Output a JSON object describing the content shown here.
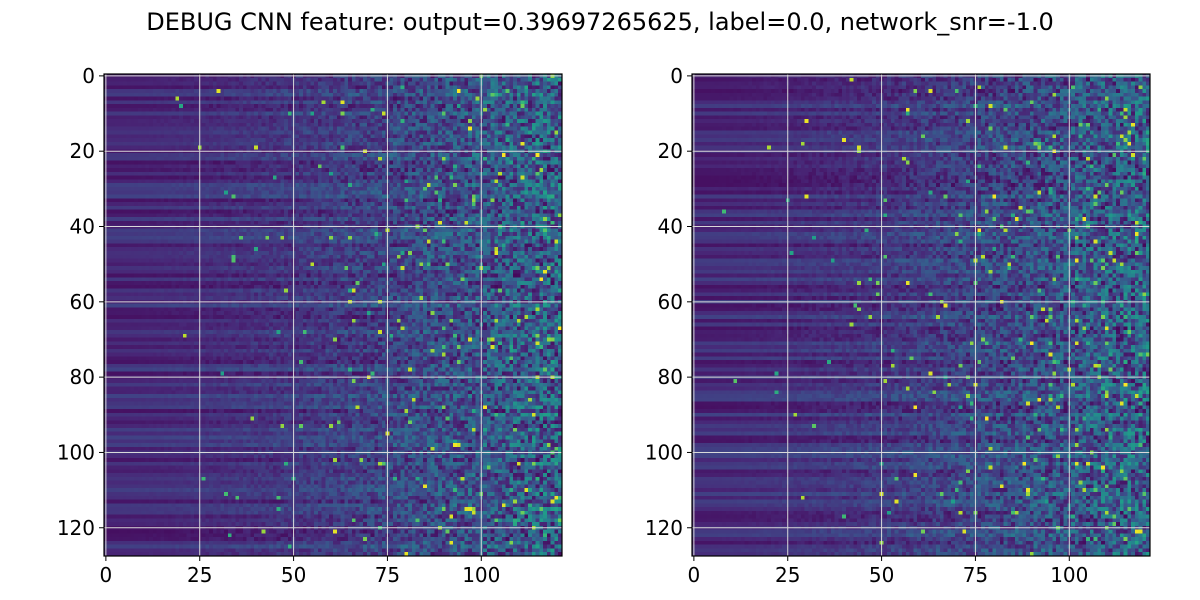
{
  "title": "DEBUG CNN feature: output=0.39697265625, label=0.0, network_snr=-1.0",
  "chart_data": [
    {
      "type": "heatmap",
      "title": "",
      "xlabel": "",
      "ylabel": "",
      "xlim": [
        -0.5,
        121.5
      ],
      "ylim": [
        127.5,
        -0.5
      ],
      "columns": 122,
      "rows": 128,
      "xticks": [
        0,
        25,
        50,
        75,
        100
      ],
      "xtick_labels": [
        "0",
        "25",
        "50",
        "75",
        "100"
      ],
      "yticks": [
        0,
        20,
        40,
        60,
        80,
        100,
        120
      ],
      "ytick_labels": [
        "0",
        "20",
        "40",
        "60",
        "80",
        "100",
        "120"
      ],
      "grid": true,
      "colormap": "viridis",
      "pattern": "smooth low-intensity horizontal bands on the left, increasingly noisy speckle toward the right"
    },
    {
      "type": "heatmap",
      "title": "",
      "xlabel": "",
      "ylabel": "",
      "xlim": [
        -0.5,
        121.5
      ],
      "ylim": [
        127.5,
        -0.5
      ],
      "columns": 122,
      "rows": 128,
      "xticks": [
        0,
        25,
        50,
        75,
        100
      ],
      "xtick_labels": [
        "0",
        "25",
        "50",
        "75",
        "100"
      ],
      "yticks": [
        0,
        20,
        40,
        60,
        80,
        100,
        120
      ],
      "ytick_labels": [
        "0",
        "20",
        "40",
        "60",
        "80",
        "100",
        "120"
      ],
      "grid": true,
      "colormap": "viridis",
      "pattern": "smooth low-intensity horizontal bands on the left, increasingly noisy speckle toward the right"
    }
  ],
  "colors": {
    "viridis": [
      "#440154",
      "#482878",
      "#3e4a89",
      "#31688e",
      "#26828e",
      "#1f9e89",
      "#35b779",
      "#6ece58",
      "#b5de2b",
      "#fde725"
    ],
    "grid": "#d9d9d9",
    "axis": "#000000"
  }
}
